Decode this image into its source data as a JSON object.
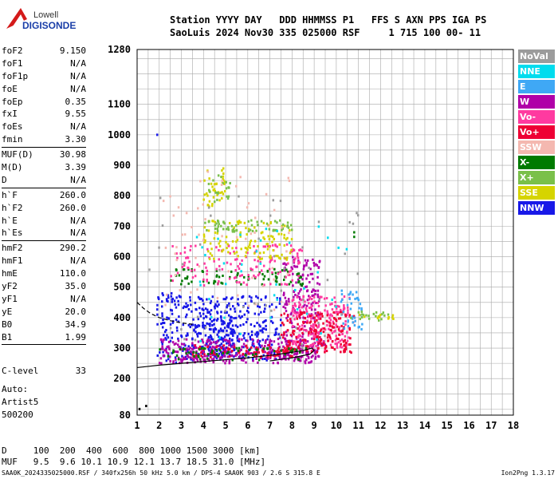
{
  "logo": {
    "line1": "Lowell",
    "line2": "DIGISONDE"
  },
  "header": {
    "line1": "Station YYYY DAY   DDD HHMMSS P1   FFS S AXN PPS IGA PS",
    "line2": "SaoLuis 2024 Nov30 335 025000 RSF     1 715 100 00- 11"
  },
  "parameters": [
    {
      "group": 1,
      "key": "foF2",
      "value": "9.150"
    },
    {
      "group": 1,
      "key": "foF1",
      "value": "N/A"
    },
    {
      "group": 1,
      "key": "foF1p",
      "value": "N/A"
    },
    {
      "group": 1,
      "key": "foE",
      "value": "N/A"
    },
    {
      "group": 1,
      "key": "foEp",
      "value": "0.35"
    },
    {
      "group": 1,
      "key": "fxI",
      "value": "9.55"
    },
    {
      "group": 1,
      "key": "foEs",
      "value": "N/A"
    },
    {
      "group": 1,
      "key": "fmin",
      "value": "3.30"
    },
    {
      "group": 2,
      "key": "MUF(D)",
      "value": "30.98"
    },
    {
      "group": 2,
      "key": "M(D)",
      "value": "3.39"
    },
    {
      "group": 2,
      "key": "D",
      "value": "N/A"
    },
    {
      "group": 3,
      "key": "h`F",
      "value": "260.0"
    },
    {
      "group": 3,
      "key": "h`F2",
      "value": "260.0"
    },
    {
      "group": 3,
      "key": "h`E",
      "value": "N/A"
    },
    {
      "group": 3,
      "key": "h`Es",
      "value": "N/A"
    },
    {
      "group": 4,
      "key": "hmF2",
      "value": "290.2"
    },
    {
      "group": 4,
      "key": "hmF1",
      "value": "N/A"
    },
    {
      "group": 4,
      "key": "hmE",
      "value": "110.0"
    },
    {
      "group": 4,
      "key": "yF2",
      "value": "35.0"
    },
    {
      "group": 4,
      "key": "yF1",
      "value": "N/A"
    },
    {
      "group": 4,
      "key": "yE",
      "value": "20.0"
    },
    {
      "group": 4,
      "key": "B0",
      "value": "34.9"
    },
    {
      "group": 4,
      "key": "B1",
      "value": "1.99"
    }
  ],
  "clevel": {
    "key": "C-level",
    "value": "33"
  },
  "autoscale": [
    "Auto:",
    "Artist5",
    "500200"
  ],
  "legend": [
    {
      "label": "NoVal",
      "color": "#9c9c9c"
    },
    {
      "label": "NNE",
      "color": "#00dcee"
    },
    {
      "label": "E",
      "color": "#3fa8f5"
    },
    {
      "label": "W",
      "color": "#b000a8"
    },
    {
      "label": "Vo-",
      "color": "#ff3aa0"
    },
    {
      "label": "Vo+",
      "color": "#ee0034"
    },
    {
      "label": "SSW",
      "color": "#f4b8b0"
    },
    {
      "label": "X-",
      "color": "#007a00"
    },
    {
      "label": "X+",
      "color": "#7ac04a"
    },
    {
      "label": "SSE",
      "color": "#d6d400"
    },
    {
      "label": "NNW",
      "color": "#1818e8"
    }
  ],
  "dm_table": {
    "line1": "D     100  200  400  600  800 1000 1500 3000 [km]",
    "line2": "MUF   9.5  9.6 10.1 10.9 12.1 13.7 18.5 31.0 [MHz]"
  },
  "footer": {
    "left": "SAA0K_2024335025000.RSF / 340fx256h 50 kHz 5.0 km / DPS-4 SAA0K 903 / 2.6 S 315.8 E",
    "right": "Ion2Png 1.3.17"
  },
  "chart_data": {
    "type": "scatter",
    "x_ticks": [
      1,
      2,
      3,
      4,
      5,
      6,
      7,
      8,
      9,
      10,
      11,
      12,
      13,
      14,
      15,
      16,
      17,
      18
    ],
    "y_ticks": [
      80,
      200,
      300,
      400,
      500,
      600,
      700,
      800,
      900,
      1000,
      1100,
      1280
    ],
    "xlim": [
      1,
      18
    ],
    "ylim": [
      80,
      1280
    ],
    "grid": true,
    "traces": [
      {
        "style": "solid",
        "x": [
          1.0,
          1.5,
          2.0,
          3.0,
          4.0,
          5.0,
          6.0,
          7.0,
          7.8,
          8.5,
          8.9,
          9.0,
          8.8,
          8.0,
          7.0
        ],
        "y": [
          236,
          240,
          244,
          250,
          256,
          262,
          268,
          276,
          284,
          292,
          300,
          292,
          280,
          268,
          258
        ]
      },
      {
        "style": "dashed",
        "x": [
          1.0,
          1.3,
          1.6,
          2.0,
          2.5,
          3.0,
          3.5
        ],
        "y": [
          450,
          430,
          414,
          400,
          390,
          383,
          378
        ]
      }
    ],
    "echoes": [
      {
        "color": "#1818e8",
        "x": [
          1.9,
          3.0
        ],
        "y": [
          250,
          480
        ],
        "n": 80
      },
      {
        "color": "#1818e8",
        "x": [
          3.0,
          7.5
        ],
        "y": [
          260,
          470
        ],
        "n": 320
      },
      {
        "color": "#1818e8",
        "x": [
          4.2,
          5.4
        ],
        "y": [
          270,
          440
        ],
        "n": 120
      },
      {
        "color": "#b000a8",
        "x": [
          2.0,
          9.5
        ],
        "y": [
          250,
          330
        ],
        "n": 320
      },
      {
        "color": "#b000a8",
        "x": [
          7.6,
          9.3
        ],
        "y": [
          260,
          600
        ],
        "n": 200
      },
      {
        "color": "#ff3aa0",
        "x": [
          8.0,
          10.6
        ],
        "y": [
          290,
          470
        ],
        "n": 200
      },
      {
        "color": "#ee0034",
        "x": [
          7.5,
          10.8
        ],
        "y": [
          285,
          420
        ],
        "n": 180
      },
      {
        "color": "#ee0034",
        "x": [
          3.5,
          8.0
        ],
        "y": [
          270,
          310
        ],
        "n": 80
      },
      {
        "color": "#3fa8f5",
        "x": [
          10.2,
          11.2
        ],
        "y": [
          360,
          490
        ],
        "n": 40
      },
      {
        "color": "#007a00",
        "x": [
          2.5,
          8.5
        ],
        "y": [
          505,
          560
        ],
        "n": 80
      },
      {
        "color": "#007a00",
        "x": [
          2.0,
          9.0
        ],
        "y": [
          260,
          300
        ],
        "n": 60
      },
      {
        "color": "#ff3aa0",
        "x": [
          2.5,
          8.5
        ],
        "y": [
          505,
          640
        ],
        "n": 140
      },
      {
        "color": "#d6d400",
        "x": [
          4.0,
          8.0
        ],
        "y": [
          590,
          720
        ],
        "n": 120
      },
      {
        "color": "#7ac04a",
        "x": [
          4.0,
          8.0
        ],
        "y": [
          680,
          720
        ],
        "n": 60
      },
      {
        "color": "#d6d400",
        "x": [
          4.0,
          5.0
        ],
        "y": [
          760,
          890
        ],
        "n": 40
      },
      {
        "color": "#7ac04a",
        "x": [
          4.2,
          5.2
        ],
        "y": [
          780,
          870
        ],
        "n": 20
      },
      {
        "color": "#f4b8b0",
        "x": [
          2.0,
          8.0
        ],
        "y": [
          400,
          880
        ],
        "n": 60
      },
      {
        "color": "#9c9c9c",
        "x": [
          1.5,
          11.0
        ],
        "y": [
          300,
          800
        ],
        "n": 50
      },
      {
        "color": "#00dcee",
        "x": [
          3.5,
          10.5
        ],
        "y": [
          300,
          700
        ],
        "n": 40
      },
      {
        "color": "#7ac04a",
        "x": [
          10.6,
          12.6
        ],
        "y": [
          390,
          420
        ],
        "n": 20
      },
      {
        "color": "#d6d400",
        "x": [
          10.8,
          12.6
        ],
        "y": [
          395,
          410
        ],
        "n": 12
      }
    ],
    "points": [
      {
        "color": "#1818e8",
        "x": 1.9,
        "y": 1000
      },
      {
        "color": "#000000",
        "x": 1.1,
        "y": 100
      },
      {
        "color": "#000000",
        "x": 1.4,
        "y": 110
      },
      {
        "color": "#007a00",
        "x": 10.8,
        "y": 680
      },
      {
        "color": "#007a00",
        "x": 10.8,
        "y": 665
      }
    ]
  }
}
